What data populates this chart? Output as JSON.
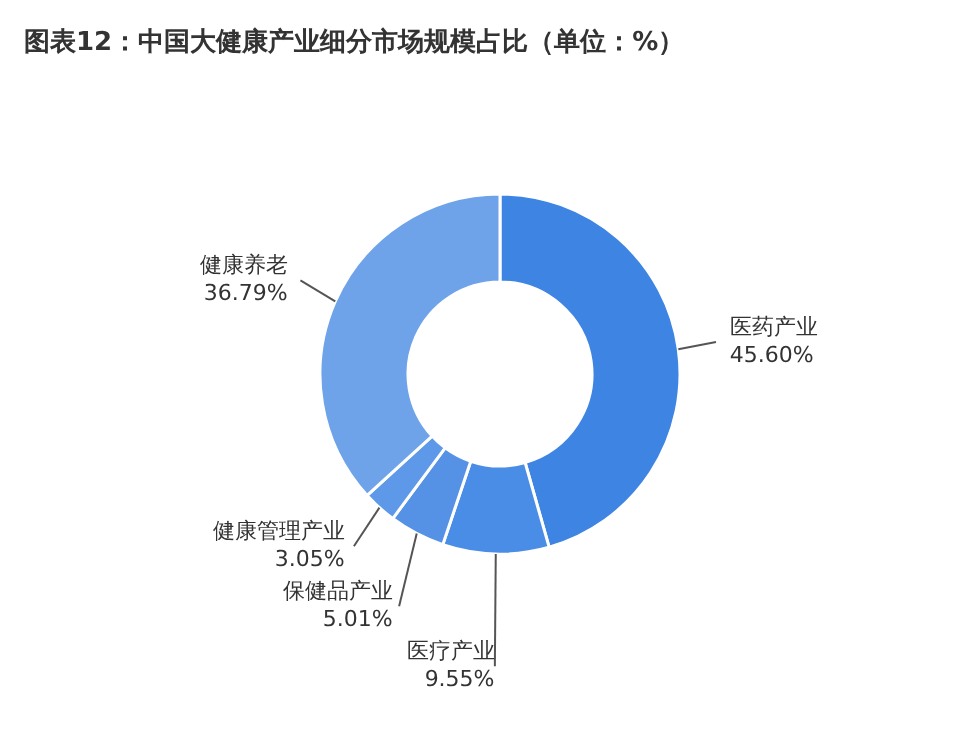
{
  "chart_data": {
    "type": "donut",
    "title": "图表12：中国大健康产业细分市场规模占比（单位：%）",
    "categories": [
      "医药产业",
      "医疗产业",
      "保健品产业",
      "健康管理产业",
      "健康养老"
    ],
    "values": [
      45.6,
      9.55,
      5.01,
      3.05,
      36.79
    ],
    "value_labels": [
      "45.60%",
      "9.55%",
      "5.01%",
      "3.05%",
      "36.79%"
    ],
    "colors": [
      "#3d84e3",
      "#4a8de6",
      "#5592e6",
      "#5e98e8",
      "#6ea3ea"
    ],
    "legend": false
  }
}
